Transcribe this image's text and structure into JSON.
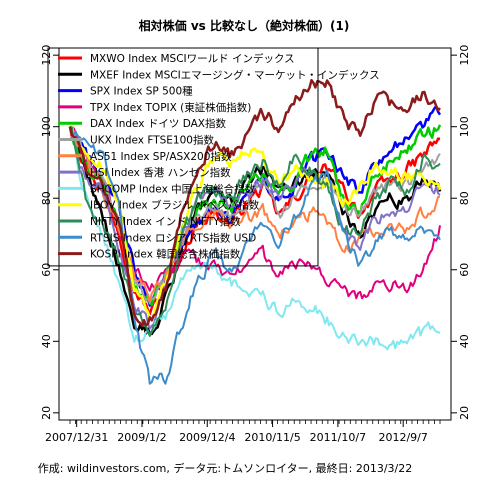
{
  "chart_data": {
    "type": "line",
    "title": "相対株価 vs 比較なし（絶対株価）(1)",
    "caption": "作成: wildinvestors.com, データ元:トムソンロイター, 最終日: 2013/3/22",
    "x_tick_labels": [
      "2007/12/31",
      "2009/1/2",
      "2009/12/4",
      "2010/11/5",
      "2011/10/7",
      "2012/9/7"
    ],
    "y_ticks": [
      20,
      40,
      60,
      80,
      100,
      120
    ],
    "ylim": [
      18,
      122
    ],
    "grid": false,
    "legend_position": "top-left",
    "series": [
      {
        "name": "MXWO Index MSCIワールド インデックス",
        "color": "#ff0000",
        "lw": 2.5,
        "values": [
          100,
          90,
          82,
          72,
          55,
          48,
          55,
          65,
          74,
          76,
          73,
          79,
          83,
          75,
          80,
          86,
          88,
          82,
          76,
          82,
          85,
          88,
          92,
          97
        ]
      },
      {
        "name": "MXEF Index MSCIエマージング・マーケット・インデックス",
        "color": "#000000",
        "lw": 2.5,
        "values": [
          100,
          88,
          76,
          62,
          45,
          42,
          52,
          66,
          78,
          82,
          79,
          84,
          88,
          82,
          85,
          87,
          87,
          76,
          70,
          78,
          80,
          79,
          86,
          82
        ]
      },
      {
        "name": "SPX Index SP 500種",
        "color": "#0000ff",
        "lw": 2.5,
        "values": [
          100,
          92,
          86,
          78,
          60,
          50,
          58,
          68,
          75,
          78,
          74,
          80,
          85,
          78,
          83,
          90,
          94,
          86,
          82,
          90,
          94,
          96,
          100,
          105
        ]
      },
      {
        "name": "TPX Index TOPIX (東証株価指数)",
        "color": "#e0007f",
        "lw": 2,
        "values": [
          100,
          90,
          85,
          72,
          60,
          55,
          58,
          64,
          62,
          60,
          58,
          62,
          64,
          58,
          62,
          60,
          58,
          54,
          52,
          55,
          56,
          54,
          60,
          72
        ]
      },
      {
        "name": "DAX Index ドイツ DAX指数",
        "color": "#00cc00",
        "lw": 2.5,
        "values": [
          100,
          88,
          84,
          74,
          55,
          50,
          58,
          70,
          78,
          80,
          76,
          84,
          86,
          80,
          84,
          92,
          94,
          80,
          76,
          86,
          90,
          94,
          98,
          100
        ]
      },
      {
        "name": "UKX Index FTSE100指数",
        "color": "#a0a0a0",
        "lw": 2,
        "values": [
          100,
          92,
          85,
          74,
          58,
          52,
          58,
          68,
          76,
          78,
          74,
          80,
          84,
          76,
          80,
          85,
          86,
          78,
          76,
          82,
          84,
          84,
          88,
          92
        ]
      },
      {
        "name": "AS51 Index SP/ASX200指数",
        "color": "#ff8040",
        "lw": 2,
        "values": [
          100,
          90,
          82,
          72,
          58,
          52,
          58,
          68,
          74,
          76,
          72,
          74,
          76,
          70,
          72,
          76,
          74,
          66,
          68,
          70,
          72,
          72,
          76,
          80
        ]
      },
      {
        "name": "HSI Index 香港 ハンセン指数",
        "color": "#8070c8",
        "lw": 2,
        "values": [
          100,
          85,
          82,
          68,
          50,
          45,
          55,
          70,
          80,
          82,
          78,
          80,
          84,
          80,
          86,
          86,
          84,
          70,
          66,
          74,
          76,
          76,
          84,
          82
        ]
      },
      {
        "name": "SHCOMP Index 中国上海総合指数",
        "color": "#80e8f0",
        "lw": 2,
        "values": [
          100,
          80,
          70,
          56,
          40,
          42,
          48,
          58,
          62,
          60,
          56,
          54,
          52,
          48,
          52,
          50,
          46,
          42,
          40,
          40,
          38,
          40,
          42,
          44
        ]
      },
      {
        "name": "IBOV Index ブラジル ボベスパ指数",
        "color": "#ffff00",
        "lw": 2.5,
        "values": [
          100,
          92,
          90,
          80,
          55,
          48,
          58,
          72,
          84,
          92,
          90,
          94,
          90,
          84,
          88,
          86,
          84,
          80,
          82,
          90,
          88,
          86,
          86,
          84
        ]
      },
      {
        "name": "NIFTY Index インド NIFTY指数",
        "color": "#2e8b57",
        "lw": 2,
        "values": [
          100,
          80,
          72,
          64,
          48,
          44,
          52,
          70,
          80,
          82,
          80,
          86,
          90,
          84,
          92,
          88,
          82,
          72,
          70,
          80,
          84,
          82,
          92,
          88
        ]
      },
      {
        "name": "RTSIS Index ロシア RTS指数 USD",
        "color": "#3c8ccc",
        "lw": 2,
        "values": [
          100,
          96,
          92,
          78,
          45,
          28,
          30,
          45,
          58,
          64,
          60,
          66,
          74,
          68,
          74,
          84,
          86,
          70,
          62,
          68,
          70,
          68,
          72,
          66
        ]
      },
      {
        "name": "KOSPI Index 韓国総合株価指数",
        "color": "#8b1a1a",
        "lw": 2.5,
        "values": [
          100,
          88,
          84,
          74,
          48,
          46,
          56,
          76,
          90,
          96,
          92,
          98,
          104,
          100,
          108,
          112,
          112,
          102,
          98,
          108,
          106,
          104,
          110,
          106
        ]
      }
    ]
  }
}
